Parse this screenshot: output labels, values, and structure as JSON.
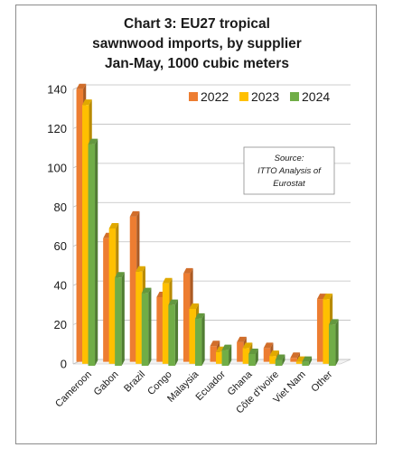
{
  "chart_data": {
    "type": "bar",
    "title_lines": [
      "Chart 3: EU27 tropical",
      "sawnwood imports, by supplier",
      "Jan-May, 1000 cubic meters"
    ],
    "xlabel": "",
    "ylabel": "",
    "ylim": [
      0,
      140
    ],
    "yticks": [
      "0",
      "20",
      "40",
      "60",
      "80",
      "100",
      "120",
      "140"
    ],
    "categories": [
      "Cameroon",
      "Gabon",
      "Brazil",
      "Congo",
      "Malaysia",
      "Ecuador",
      "Ghana",
      "Côte d'Ivoire",
      "Viet Nam",
      "Other"
    ],
    "series": [
      {
        "name": "2022",
        "color": "#ed7d31",
        "values": [
          139,
          63,
          74,
          33,
          45,
          8,
          10,
          7,
          2,
          32
        ]
      },
      {
        "name": "2023",
        "color": "#ffc000",
        "values": [
          132,
          69,
          47,
          41,
          28,
          6,
          8,
          4,
          1,
          33
        ]
      },
      {
        "name": "2024",
        "color": "#70ad47",
        "values": [
          113,
          45,
          37,
          31,
          24,
          8,
          6,
          3,
          2,
          21
        ]
      }
    ],
    "grid": true,
    "legend_position": "top-right",
    "style": "3d-clustered-column"
  },
  "source_note": [
    "Source:",
    "ITTO Analysis of",
    "Eurostat"
  ]
}
